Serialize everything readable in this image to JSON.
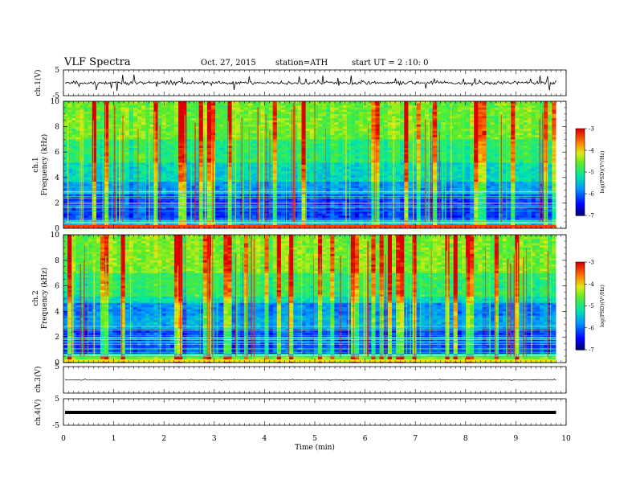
{
  "header": {
    "title": "VLF  Spectra",
    "date": "Oct. 27, 2015",
    "station": "station=ATH",
    "start": "start  UT  =  2 :10: 0"
  },
  "chart_data": {
    "type": "heatmap",
    "xlabel": "Time  (min)",
    "xlim": [
      0,
      10
    ],
    "xticks": [
      "0",
      "1",
      "2",
      "3",
      "4",
      "5",
      "6",
      "7",
      "8",
      "9",
      "10"
    ],
    "data_end_min": 9.8,
    "panels": [
      {
        "id": "ch1-wave",
        "type": "line",
        "ylabel": "ch.1(V)",
        "ylim": [
          -5,
          5
        ],
        "ytick_labels": [
          "5",
          "-5"
        ]
      },
      {
        "id": "ch1-spec",
        "type": "heatmap",
        "ylabel_top": "ch.1",
        "ylabel": "Frequency  (kHz)",
        "ylim": [
          0,
          10
        ],
        "yticks": [
          "0",
          "2",
          "4",
          "6",
          "8",
          "10"
        ],
        "colorbar": {
          "label": "log(PSD)(V²/Hz)",
          "range": [
            -7,
            -3
          ],
          "ticks": [
            "-3",
            "-4",
            "-5",
            "-6",
            "-7"
          ]
        }
      },
      {
        "id": "ch2-spec",
        "type": "heatmap",
        "ylabel_top": "ch.2",
        "ylabel": "Frequency  (kHz)",
        "ylim": [
          0,
          10
        ],
        "yticks": [
          "0",
          "2",
          "4",
          "6",
          "8",
          "10"
        ],
        "colorbar": {
          "label": "log(PSD)(V²/Hz)",
          "range": [
            -7,
            -3
          ],
          "ticks": [
            "-3",
            "-4",
            "-5",
            "-6",
            "-7"
          ]
        }
      },
      {
        "id": "ch3-wave",
        "type": "line",
        "ylabel": "ch.3(V)",
        "ylim": [
          -5,
          5
        ],
        "ytick_labels": [
          "5"
        ]
      },
      {
        "id": "ch4-wave",
        "type": "line",
        "ylabel": "ch.4(V)",
        "ylim": [
          -5,
          5
        ],
        "ytick_labels": [
          "5",
          "-5"
        ]
      }
    ]
  }
}
